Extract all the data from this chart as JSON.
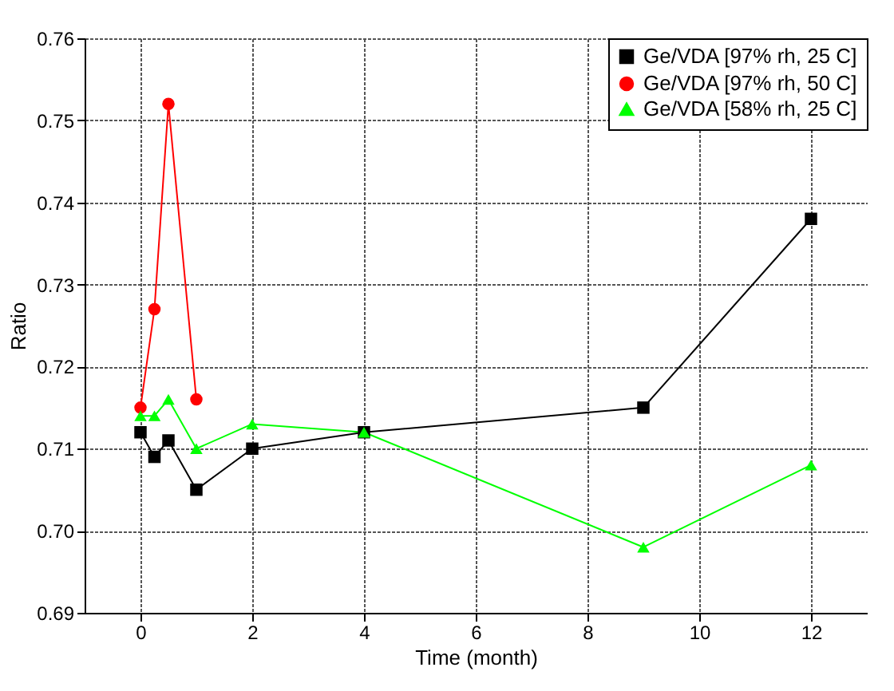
{
  "chart_data": {
    "type": "line",
    "xlabel": "Time (month)",
    "ylabel": "Ratio",
    "xlim": [
      -1,
      13
    ],
    "xticks": [
      0,
      2,
      4,
      6,
      8,
      10,
      12
    ],
    "ylim": [
      0.69,
      0.76
    ],
    "yticks": [
      {
        "value": 0.69,
        "label": "0.69"
      },
      {
        "value": 0.7,
        "label": "0.70"
      },
      {
        "value": 0.71,
        "label": "0.71"
      },
      {
        "value": 0.72,
        "label": "0.72"
      },
      {
        "value": 0.73,
        "label": "0.73"
      },
      {
        "value": 0.74,
        "label": "0.74"
      },
      {
        "value": 0.75,
        "label": "0.75"
      },
      {
        "value": 0.76,
        "label": "0.76"
      }
    ],
    "grid": true,
    "legend": "top right",
    "series": [
      {
        "name": "Ge/VDA [97% rh, 25 C]",
        "color": "#000000",
        "marker": "square",
        "x": [
          0,
          0.25,
          0.5,
          1,
          2,
          4,
          9,
          12
        ],
        "values": [
          0.712,
          0.709,
          0.711,
          0.705,
          0.71,
          0.712,
          0.715,
          0.738
        ]
      },
      {
        "name": "Ge/VDA [97% rh, 50 C]",
        "color": "#ff0000",
        "marker": "circle",
        "x": [
          0,
          0.25,
          0.5,
          1
        ],
        "values": [
          0.715,
          0.727,
          0.752,
          0.716
        ]
      },
      {
        "name": "Ge/VDA [58% rh, 25 C]",
        "color": "#00ff00",
        "marker": "triangle",
        "x": [
          0,
          0.25,
          0.5,
          1,
          2,
          4,
          9,
          12
        ],
        "values": [
          0.714,
          0.714,
          0.716,
          0.71,
          0.713,
          0.712,
          0.698,
          0.708
        ]
      }
    ]
  }
}
